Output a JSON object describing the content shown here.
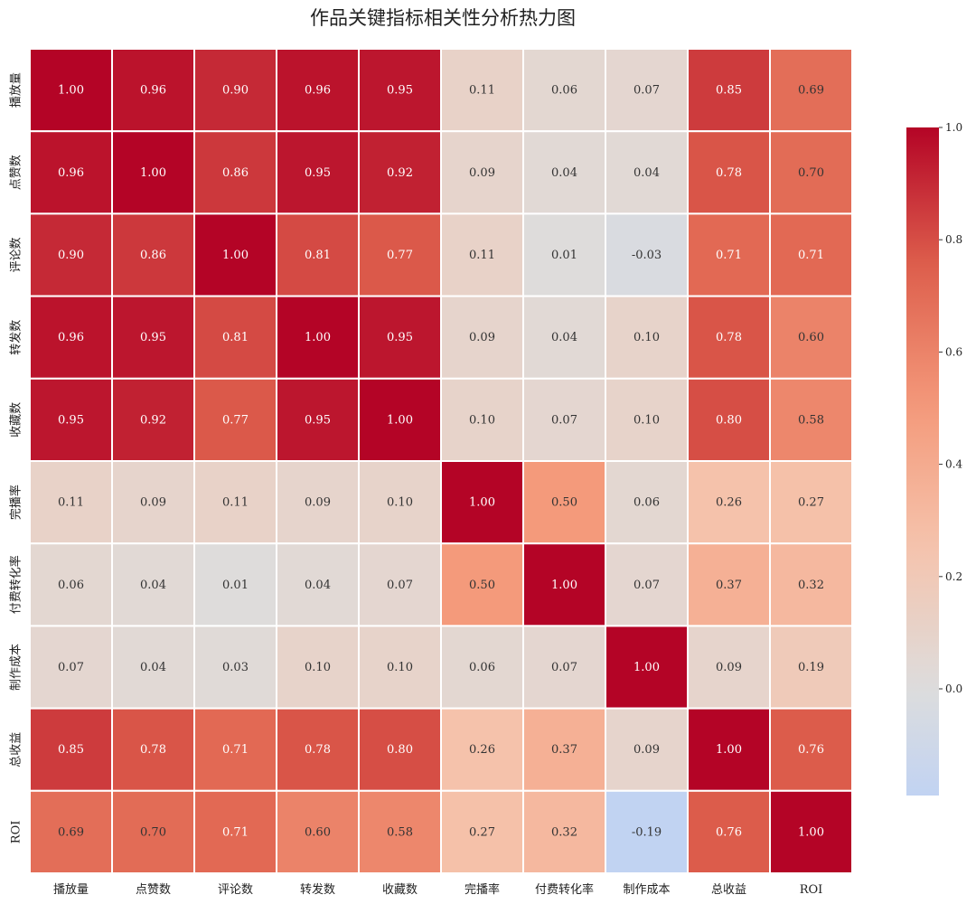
{
  "chart_data": {
    "type": "heatmap",
    "title": "作品关键指标相关性分析热力图",
    "row_labels": [
      "播放量",
      "点赞数",
      "评论数",
      "转发数",
      "收藏数",
      "完播率",
      "付费转化率",
      "制作成本",
      "总收益",
      "ROI"
    ],
    "col_labels": [
      "播放量",
      "点赞数",
      "评论数",
      "转发数",
      "收藏数",
      "完播率",
      "付费转化率",
      "制作成本",
      "总收益",
      "ROI"
    ],
    "values": [
      [
        1.0,
        0.96,
        0.9,
        0.96,
        0.95,
        0.11,
        0.06,
        0.07,
        0.85,
        0.69
      ],
      [
        0.96,
        1.0,
        0.86,
        0.95,
        0.92,
        0.09,
        0.04,
        0.04,
        0.78,
        0.7
      ],
      [
        0.9,
        0.86,
        1.0,
        0.81,
        0.77,
        0.11,
        0.01,
        -0.03,
        0.71,
        0.71
      ],
      [
        0.96,
        0.95,
        0.81,
        1.0,
        0.95,
        0.09,
        0.04,
        0.1,
        0.78,
        0.6
      ],
      [
        0.95,
        0.92,
        0.77,
        0.95,
        1.0,
        0.1,
        0.07,
        0.1,
        0.8,
        0.58
      ],
      [
        0.11,
        0.09,
        0.11,
        0.09,
        0.1,
        1.0,
        0.5,
        0.06,
        0.26,
        0.27
      ],
      [
        0.06,
        0.04,
        0.01,
        0.04,
        0.07,
        0.5,
        1.0,
        0.07,
        0.37,
        0.32
      ],
      [
        0.07,
        0.04,
        0.03,
        0.1,
        0.1,
        0.06,
        0.07,
        1.0,
        0.09,
        0.19
      ],
      [
        0.85,
        0.78,
        0.71,
        0.78,
        0.8,
        0.26,
        0.37,
        0.09,
        1.0,
        0.76
      ],
      [
        0.69,
        0.7,
        0.71,
        0.6,
        0.58,
        0.27,
        0.32,
        -0.19,
        0.76,
        1.0
      ]
    ],
    "cell_labels": [
      [
        "1.00",
        "0.96",
        "0.90",
        "0.96",
        "0.95",
        "0.11",
        "0.06",
        "0.07",
        "0.85",
        "0.69"
      ],
      [
        "0.96",
        "1.00",
        "0.86",
        "0.95",
        "0.92",
        "0.09",
        "0.04",
        "0.04",
        "0.78",
        "0.70"
      ],
      [
        "0.90",
        "0.86",
        "1.00",
        "0.81",
        "0.77",
        "0.11",
        "0.01",
        "-0.03",
        "0.71",
        "0.71"
      ],
      [
        "0.96",
        "0.95",
        "0.81",
        "1.00",
        "0.95",
        "0.09",
        "0.04",
        "0.10",
        "0.78",
        "0.60"
      ],
      [
        "0.95",
        "0.92",
        "0.77",
        "0.95",
        "1.00",
        "0.10",
        "0.07",
        "0.10",
        "0.80",
        "0.58"
      ],
      [
        "0.11",
        "0.09",
        "0.11",
        "0.09",
        "0.10",
        "1.00",
        "0.50",
        "0.06",
        "0.26",
        "0.27"
      ],
      [
        "0.06",
        "0.04",
        "0.01",
        "0.04",
        "0.07",
        "0.50",
        "1.00",
        "0.07",
        "0.37",
        "0.32"
      ],
      [
        "0.07",
        "0.04",
        "0.03",
        "0.10",
        "0.10",
        "0.06",
        "0.07",
        "1.00",
        "0.09",
        "0.19"
      ],
      [
        "0.85",
        "0.78",
        "0.71",
        "0.78",
        "0.80",
        "0.26",
        "0.37",
        "0.09",
        "1.00",
        "0.76"
      ],
      [
        "0.69",
        "0.70",
        "0.71",
        "0.60",
        "0.58",
        "0.27",
        "0.32",
        "-0.19",
        "0.76",
        "1.00"
      ]
    ],
    "colormap": "coolwarm",
    "vmin": -0.19,
    "vmax": 1.0,
    "colorbar_ticks": [
      0.0,
      0.2,
      0.4,
      0.6,
      0.8,
      1.0
    ],
    "colorbar_tick_labels": [
      "0.0",
      "0.2",
      "0.4",
      "0.6",
      "0.8",
      "1.0"
    ],
    "colors": {
      "grid_line": "#ffffff",
      "text_dark": "#333333",
      "text_light": "#ffffff"
    }
  }
}
